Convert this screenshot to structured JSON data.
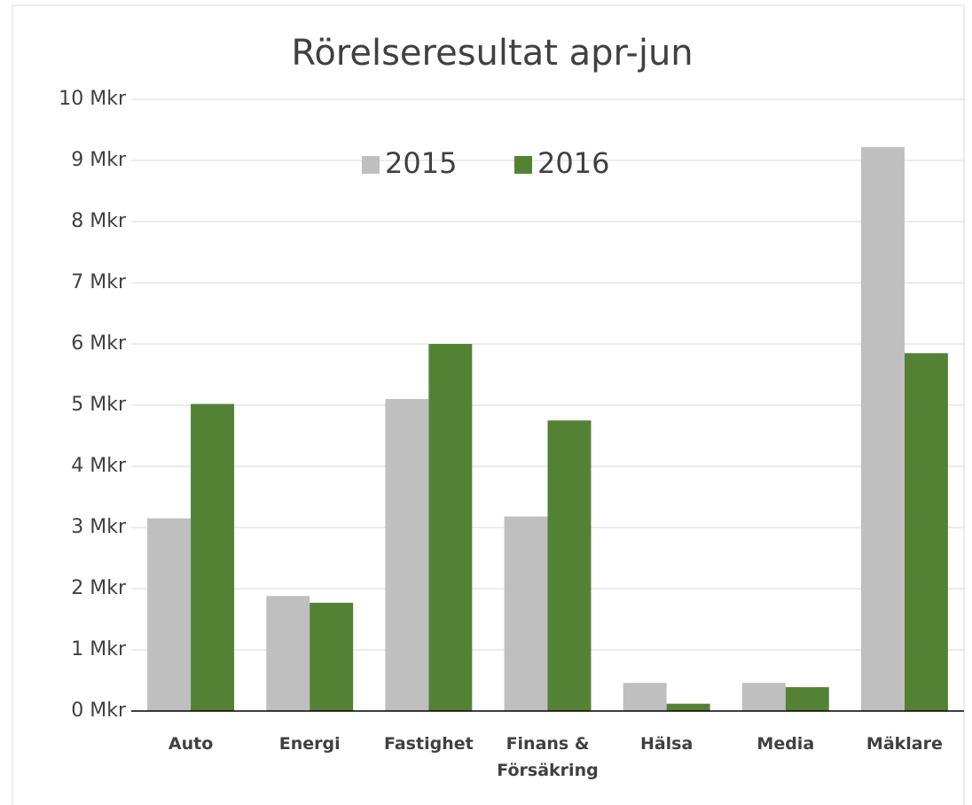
{
  "chart_data": {
    "type": "bar",
    "title": "Rörelseresultat apr-jun",
    "categories": [
      "Auto",
      "Energi",
      "Fastighet",
      "Finans & Försäkring",
      "Hälsa",
      "Media",
      "Mäklare"
    ],
    "series": [
      {
        "name": "2015",
        "color": "#bfbfbf",
        "values": [
          3.15,
          1.88,
          5.1,
          3.18,
          0.46,
          0.46,
          9.22
        ]
      },
      {
        "name": "2016",
        "color": "#548235",
        "values": [
          5.02,
          1.77,
          6.0,
          4.75,
          0.12,
          0.39,
          5.85
        ]
      }
    ],
    "ylim": [
      0,
      10
    ],
    "yticks": [
      {
        "value": 0,
        "label": "0 Mkr"
      },
      {
        "value": 1,
        "label": "1 Mkr"
      },
      {
        "value": 2,
        "label": "2 Mkr"
      },
      {
        "value": 3,
        "label": "3 Mkr"
      },
      {
        "value": 4,
        "label": "4 Mkr"
      },
      {
        "value": 5,
        "label": "5 Mkr"
      },
      {
        "value": 6,
        "label": "6 Mkr"
      },
      {
        "value": 7,
        "label": "7 Mkr"
      },
      {
        "value": 8,
        "label": "8 Mkr"
      },
      {
        "value": 9,
        "label": "9 Mkr"
      },
      {
        "value": 10,
        "label": "10 Mkr"
      }
    ],
    "grid": true,
    "legend": "top"
  }
}
